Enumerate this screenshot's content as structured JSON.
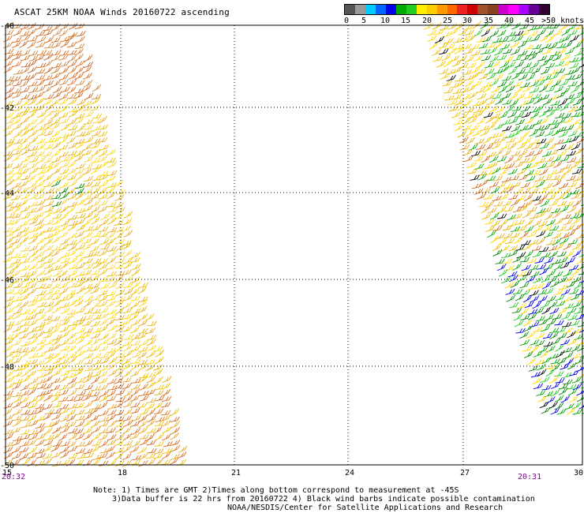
{
  "title": "ASCAT 25KM NOAA Winds 20160722 ascending",
  "legend": {
    "colors": [
      "#555555",
      "#9a9a9a",
      "#00ccff",
      "#0066ff",
      "#0000ee",
      "#00aa00",
      "#22cc22",
      "#ffee00",
      "#ffcc00",
      "#ff9900",
      "#ff6600",
      "#ee2222",
      "#cc0000",
      "#a0522d",
      "#884422",
      "#cc00cc",
      "#ff00ff",
      "#aa00ff",
      "#660099",
      "#330033"
    ],
    "labels": [
      "0",
      "5",
      "10",
      "15",
      "20",
      "25",
      "30",
      "35",
      "40",
      "45",
      ">50 knots"
    ]
  },
  "map": {
    "lon_ticks": [
      "15",
      "18",
      "21",
      "24",
      "27",
      "30"
    ],
    "lat_ticks": [
      "-40",
      "-42",
      "-44",
      "-46",
      "-48",
      "-50"
    ]
  },
  "swath_times": {
    "left": "20:32",
    "right": "20:31"
  },
  "notes": {
    "line1": "Note: 1) Times are GMT 2)Times along bottom correspond to measurement at -45S",
    "line2": "3)Data buffer is 22 hrs from 20160722 4) Black wind barbs indicate possible contamination",
    "line3": "NOAA/NESDIS/Center for Satellite Applications and Research"
  }
}
